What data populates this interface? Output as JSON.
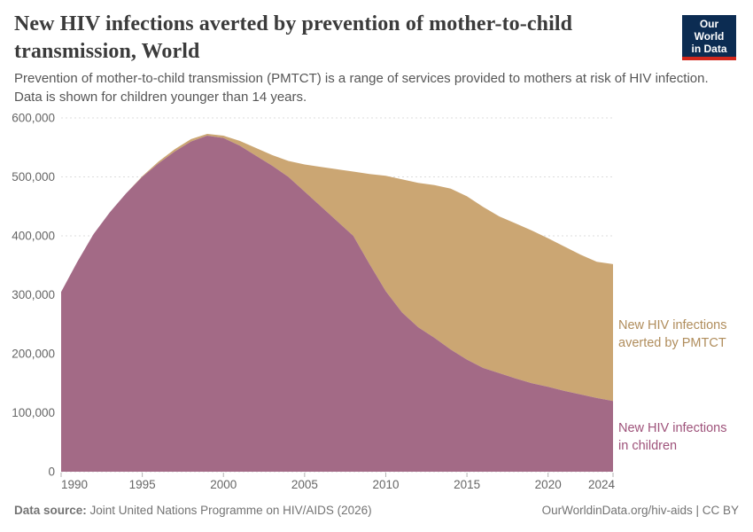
{
  "header": {
    "title": "New HIV infections averted by prevention of mother-to-child transmission, World",
    "subtitle": "Prevention of mother-to-child transmission (PMTCT) is a range of services provided to mothers at risk of HIV infection. Data is shown for children younger than 14 years.",
    "logo": {
      "line1": "Our World",
      "line2": "in Data",
      "bg_color": "#0c2c52",
      "bar_color": "#d2271c"
    }
  },
  "chart_data": {
    "type": "area",
    "stacked": true,
    "grid": "dashed",
    "x": [
      1990,
      1991,
      1992,
      1993,
      1994,
      1995,
      1996,
      1997,
      1998,
      1999,
      2000,
      2001,
      2002,
      2003,
      2004,
      2005,
      2006,
      2007,
      2008,
      2009,
      2010,
      2011,
      2012,
      2013,
      2014,
      2015,
      2016,
      2017,
      2018,
      2019,
      2020,
      2021,
      2022,
      2023,
      2024
    ],
    "series": [
      {
        "name": "New HIV infections in children",
        "color": "#a36a86",
        "label_color": "#9e527a",
        "values": [
          305000,
          356000,
          403000,
          440000,
          472000,
          500000,
          523000,
          543000,
          560000,
          570000,
          566000,
          553000,
          536000,
          519000,
          500000,
          475000,
          450000,
          425000,
          400000,
          352000,
          306000,
          270000,
          245000,
          227000,
          207000,
          190000,
          176000,
          167000,
          158000,
          150000,
          144000,
          137000,
          131000,
          125000,
          120000
        ]
      },
      {
        "name": "New HIV infections averted by PMTCT",
        "color": "#cba673",
        "label_color": "#b08d5c",
        "values": [
          0,
          0,
          0,
          0,
          0,
          1000,
          3000,
          4000,
          4000,
          3000,
          4000,
          8000,
          13000,
          18000,
          27000,
          46000,
          67000,
          88000,
          109000,
          153000,
          196000,
          226000,
          245000,
          259000,
          273000,
          277000,
          273000,
          266000,
          263000,
          259000,
          252000,
          245000,
          237000,
          231000,
          232000
        ]
      }
    ],
    "ylim": [
      0,
      600000
    ],
    "yticks": [
      0,
      100000,
      200000,
      300000,
      400000,
      500000,
      600000
    ],
    "ytick_labels": [
      "0",
      "100,000",
      "200,000",
      "300,000",
      "400,000",
      "500,000",
      "600,000"
    ],
    "xticks": [
      1990,
      1995,
      2000,
      2005,
      2010,
      2015,
      2020,
      2024
    ],
    "xlabel": "",
    "ylabel": "",
    "legend_position": "right"
  },
  "legend": {
    "averted": {
      "line1": "New HIV infections",
      "line2": "averted by PMTCT"
    },
    "children": {
      "line1": "New HIV infections",
      "line2": "in children"
    }
  },
  "footer": {
    "source_label": "Data source:",
    "source_text": " Joint United Nations Programme on HIV/AIDS (2026)",
    "credit": "OurWorldinData.org/hiv-aids | CC BY"
  }
}
